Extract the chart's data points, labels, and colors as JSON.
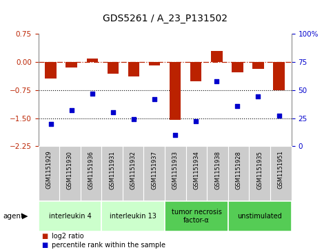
{
  "title": "GDS5261 / A_23_P131502",
  "samples": [
    "GSM1151929",
    "GSM1151930",
    "GSM1151936",
    "GSM1151931",
    "GSM1151932",
    "GSM1151937",
    "GSM1151933",
    "GSM1151934",
    "GSM1151938",
    "GSM1151928",
    "GSM1151935",
    "GSM1151951"
  ],
  "log2_ratio": [
    -0.45,
    -0.15,
    0.08,
    -0.32,
    -0.38,
    -0.1,
    -1.55,
    -0.52,
    0.3,
    -0.28,
    -0.18,
    -0.75
  ],
  "percentile_rank": [
    20,
    32,
    47,
    30,
    24,
    42,
    10,
    22,
    58,
    36,
    44,
    27
  ],
  "ylim_left": [
    -2.25,
    0.75
  ],
  "ylim_right": [
    0,
    100
  ],
  "yticks_left": [
    -2.25,
    -1.5,
    -0.75,
    0,
    0.75
  ],
  "yticks_right": [
    0,
    25,
    50,
    75,
    100
  ],
  "bar_color": "#bb2200",
  "dot_color": "#0000cc",
  "agent_groups": [
    {
      "label": "interleukin 4",
      "start": 0,
      "end": 3,
      "color": "#ccffcc"
    },
    {
      "label": "interleukin 13",
      "start": 3,
      "end": 6,
      "color": "#ccffcc"
    },
    {
      "label": "tumor necrosis\nfactor-α",
      "start": 6,
      "end": 9,
      "color": "#55cc55"
    },
    {
      "label": "unstimulated",
      "start": 9,
      "end": 12,
      "color": "#55cc55"
    }
  ],
  "legend_bar_label": "log2 ratio",
  "legend_dot_label": "percentile rank within the sample",
  "title_fontsize": 10,
  "tick_fontsize": 7.5,
  "label_fontsize": 6,
  "agent_fontsize": 7,
  "agent_label": "agent"
}
